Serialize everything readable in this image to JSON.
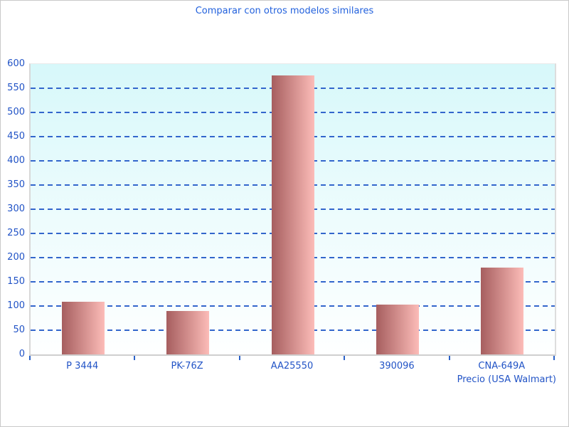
{
  "chart_data": {
    "type": "bar",
    "title": "Comparar con otros modelos similares",
    "xlabel": "Precio (USA Walmart)",
    "ylabel": "",
    "categories": [
      "P 3444",
      "PK-76Z",
      "AA25550",
      "390096",
      "CNA-649A"
    ],
    "values": [
      109,
      90,
      577,
      103,
      179
    ],
    "ylim": [
      0,
      600
    ],
    "ytick_step": 50,
    "grid": "horizontal-dashed",
    "legend": "none",
    "colors": {
      "title_text": "#2261dd",
      "axis_text": "#2153c6",
      "gridline": "#3366cc",
      "tick_mark": "#2b62c8",
      "bar_gradient_left": "#a65e5f",
      "bar_gradient_right": "#fcbcb8",
      "plot_bg_top": "#d7f8fa",
      "plot_bg_bottom": "#feffff",
      "axis_line": "#cfcfcf"
    }
  }
}
